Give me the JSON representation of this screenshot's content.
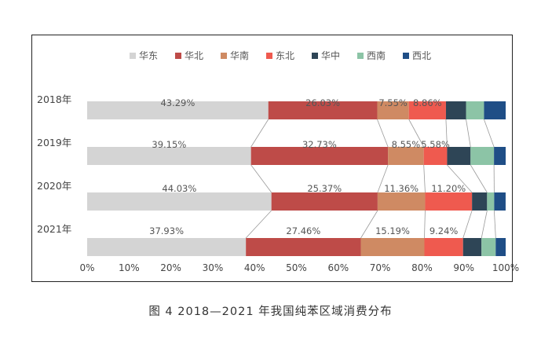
{
  "caption": "图 4  2018—2021 年我国纯苯区域消费分布",
  "chart_data": {
    "type": "bar",
    "orientation": "horizontal",
    "stacked": true,
    "percent": true,
    "categories": [
      "2018年",
      "2019年",
      "2020年",
      "2021年"
    ],
    "series": [
      {
        "name": "华东",
        "color": "#d4d4d4",
        "values": [
          43.29,
          39.15,
          44.03,
          37.93
        ],
        "labels": [
          "43.29%",
          "39.15%",
          "44.03%",
          "37.93%"
        ]
      },
      {
        "name": "华北",
        "color": "#be4b48",
        "values": [
          26.03,
          32.73,
          25.37,
          27.46
        ],
        "labels": [
          "26.03%",
          "32.73%",
          "25.37%",
          "27.46%"
        ]
      },
      {
        "name": "华南",
        "color": "#cf8a63",
        "values": [
          7.55,
          8.55,
          11.36,
          15.19
        ],
        "labels": [
          "7.55%",
          "8.55%",
          "11.36%",
          "15.19%"
        ]
      },
      {
        "name": "东北",
        "color": "#ef5a4f",
        "values": [
          8.86,
          5.58,
          11.2,
          9.24
        ],
        "labels": [
          "8.86%",
          "5.58%",
          "11.20%",
          "9.24%"
        ]
      },
      {
        "name": "华中",
        "color": "#2e4556",
        "values": [
          4.8,
          5.6,
          3.6,
          4.4
        ],
        "labels": [
          "",
          "",
          "",
          ""
        ]
      },
      {
        "name": "西南",
        "color": "#8cc4a6",
        "values": [
          4.3,
          5.6,
          1.7,
          3.4
        ],
        "labels": [
          "",
          "",
          "",
          ""
        ]
      },
      {
        "name": "西北",
        "color": "#1f4e86",
        "values": [
          5.17,
          2.79,
          2.73,
          2.38
        ],
        "labels": [
          "",
          "",
          "",
          ""
        ]
      }
    ],
    "xticks": [
      "0%",
      "10%",
      "20%",
      "30%",
      "40%",
      "50%",
      "60%",
      "70%",
      "80%",
      "90%",
      "100%"
    ],
    "xlim": [
      0,
      100
    ],
    "legend": "top",
    "grid": false
  }
}
